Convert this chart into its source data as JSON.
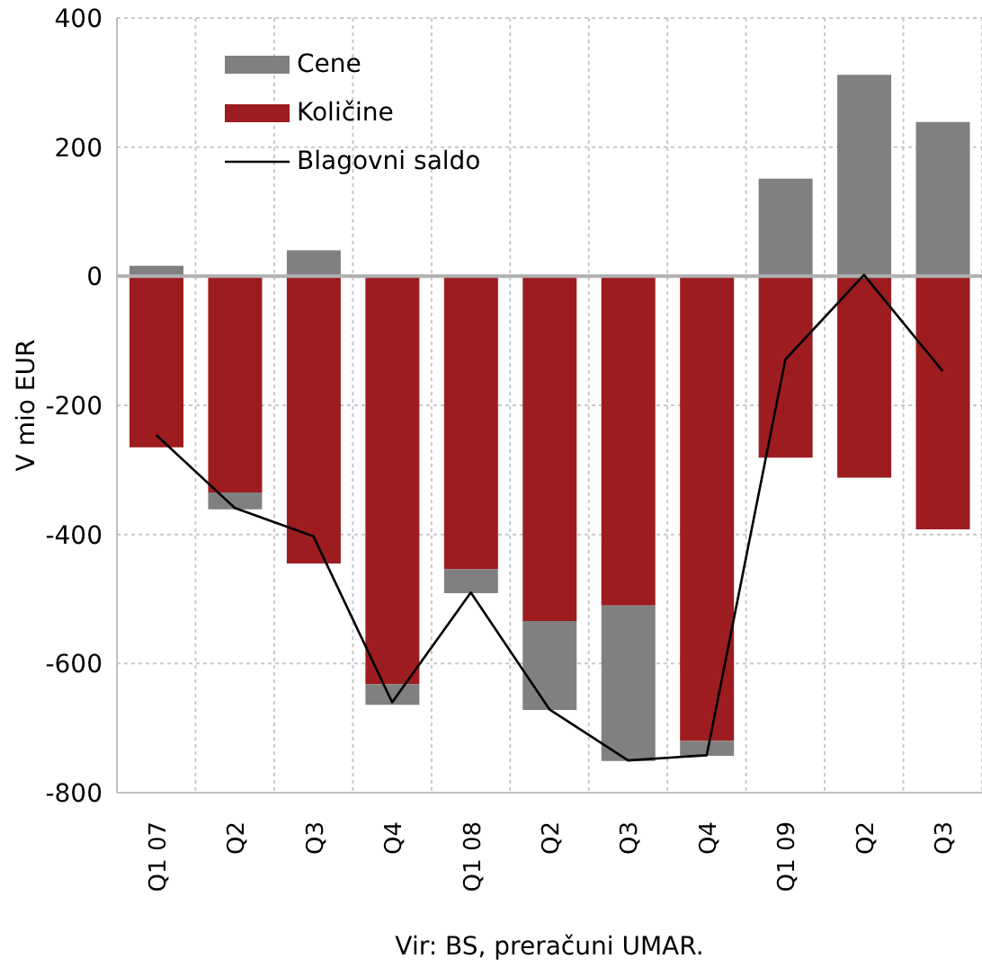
{
  "chart_data": {
    "type": "bar",
    "stacked": true,
    "ylabel": "V mio EUR",
    "annotations": [
      "Vir: BS, preračuni UMAR."
    ],
    "categories": [
      "Q1 07",
      "Q2",
      "Q3",
      "Q4",
      "Q1 08",
      "Q2",
      "Q3",
      "Q4",
      "Q1 09",
      "Q2",
      "Q3"
    ],
    "series": [
      {
        "name": "Količine",
        "color": "#9c1c20",
        "values": [
          -265,
          -335,
          -445,
          -632,
          -454,
          -534,
          -510,
          -720,
          -281,
          -312,
          -392
        ]
      },
      {
        "name": "Cene",
        "color": "#808080",
        "values": [
          16,
          -26,
          40,
          -32,
          -37,
          -138,
          -241,
          -23,
          151,
          312,
          239
        ]
      },
      {
        "name": "Blagovni saldo",
        "type": "line",
        "color": "#000000",
        "values": [
          -246,
          -359,
          -403,
          -660,
          -490,
          -671,
          -750,
          -742,
          -129,
          2,
          -147
        ]
      }
    ],
    "ylim": [
      -800,
      400
    ],
    "yticks": [
      -800,
      -600,
      -400,
      -200,
      0,
      200,
      400
    ],
    "grid": true,
    "legend": "top left",
    "marker": "none",
    "line_style": "solid"
  }
}
